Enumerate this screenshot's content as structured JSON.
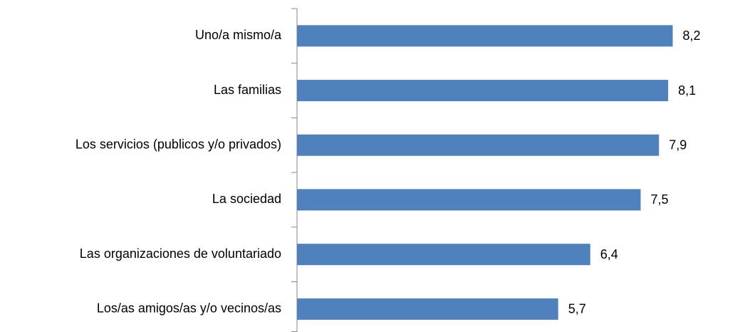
{
  "chart_data": {
    "type": "bar",
    "orientation": "horizontal",
    "categories": [
      "Uno/a mismo/a",
      "Las familias",
      "Los servicios (publicos y/o privados)",
      "La sociedad",
      "Las organizaciones de voluntariado",
      "Los/as amigos/as y/o vecinos/as"
    ],
    "values": [
      8.2,
      8.1,
      7.9,
      7.5,
      6.4,
      5.7
    ],
    "value_labels": [
      "8,2",
      "8,1",
      "7,9",
      "7,5",
      "6,4",
      "5,7"
    ],
    "color": "#4f81bd",
    "xlim": [
      0,
      9
    ]
  }
}
